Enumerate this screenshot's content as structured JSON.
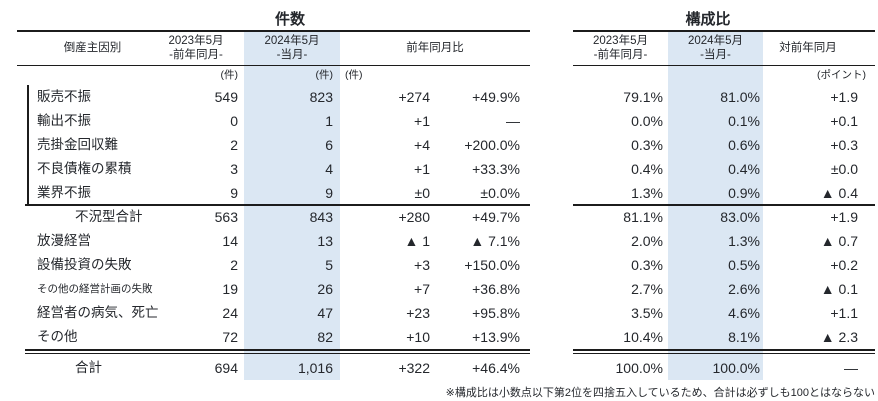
{
  "page": {
    "left_table_title": "件数",
    "right_table_title": "構成比",
    "footnote": "※構成比は小数点以下第2位を四捨五入しているため、合計は必ずしも100とはならない"
  },
  "headers": {
    "cause": "倒産主因別",
    "prev_year_line1": "2023年5月",
    "prev_year_line2": "-前年同月-",
    "current_line1": "2024年5月",
    "current_line2": "-当月-",
    "yoy_change": "前年同月比",
    "vs_prev_year": "対前年同月",
    "unit_cases": "(件)",
    "unit_points": "(ポイント)"
  },
  "colors": {
    "highlight_column": "#dbe7f3",
    "text": "#24272c",
    "line": "#1c1c1c"
  },
  "rows": [
    {
      "type": "detail",
      "label": "販売不振",
      "c2023": "549",
      "c2024": "823",
      "diff": "+274",
      "pct": "+49.9%",
      "r2023": "79.1%",
      "r2024": "81.0%",
      "rdiff": "+1.9"
    },
    {
      "type": "detail",
      "label": "輸出不振",
      "c2023": "0",
      "c2024": "1",
      "diff": "+1",
      "pct": "—",
      "r2023": "0.0%",
      "r2024": "0.1%",
      "rdiff": "+0.1"
    },
    {
      "type": "detail",
      "label": "売掛金回収難",
      "c2023": "2",
      "c2024": "6",
      "diff": "+4",
      "pct": "+200.0%",
      "r2023": "0.3%",
      "r2024": "0.6%",
      "rdiff": "+0.3"
    },
    {
      "type": "detail",
      "label": "不良債権の累積",
      "c2023": "3",
      "c2024": "4",
      "diff": "+1",
      "pct": "+33.3%",
      "r2023": "0.4%",
      "r2024": "0.4%",
      "rdiff": "±0.0"
    },
    {
      "type": "detail",
      "label": "業界不振",
      "c2023": "9",
      "c2024": "9",
      "diff": "±0",
      "pct": "±0.0%",
      "r2023": "1.3%",
      "r2024": "0.9%",
      "rdiff": "▲ 0.4"
    },
    {
      "type": "subtotal",
      "label": "不況型合計",
      "c2023": "563",
      "c2024": "843",
      "diff": "+280",
      "pct": "+49.7%",
      "r2023": "81.1%",
      "r2024": "83.0%",
      "rdiff": "+1.9"
    },
    {
      "type": "detail",
      "label": "放漫経営",
      "c2023": "14",
      "c2024": "13",
      "diff": "▲ 1",
      "pct": "▲ 7.1%",
      "r2023": "2.0%",
      "r2024": "1.3%",
      "rdiff": "▲ 0.7"
    },
    {
      "type": "detail",
      "label": "設備投資の失敗",
      "c2023": "2",
      "c2024": "5",
      "diff": "+3",
      "pct": "+150.0%",
      "r2023": "0.3%",
      "r2024": "0.5%",
      "rdiff": "+0.2"
    },
    {
      "type": "detail_small",
      "label": "その他の経営計画の失敗",
      "c2023": "19",
      "c2024": "26",
      "diff": "+7",
      "pct": "+36.8%",
      "r2023": "2.7%",
      "r2024": "2.6%",
      "rdiff": "▲ 0.1"
    },
    {
      "type": "detail",
      "label": "経営者の病気、死亡",
      "c2023": "24",
      "c2024": "47",
      "diff": "+23",
      "pct": "+95.8%",
      "r2023": "3.5%",
      "r2024": "4.6%",
      "rdiff": "+1.1"
    },
    {
      "type": "detail",
      "label": "その他",
      "c2023": "72",
      "c2024": "82",
      "diff": "+10",
      "pct": "+13.9%",
      "r2023": "10.4%",
      "r2024": "8.1%",
      "rdiff": "▲ 2.3"
    },
    {
      "type": "total",
      "label": "合計",
      "c2023": "694",
      "c2024": "1,016",
      "diff": "+322",
      "pct": "+46.4%",
      "r2023": "100.0%",
      "r2024": "100.0%",
      "rdiff": "—"
    }
  ]
}
